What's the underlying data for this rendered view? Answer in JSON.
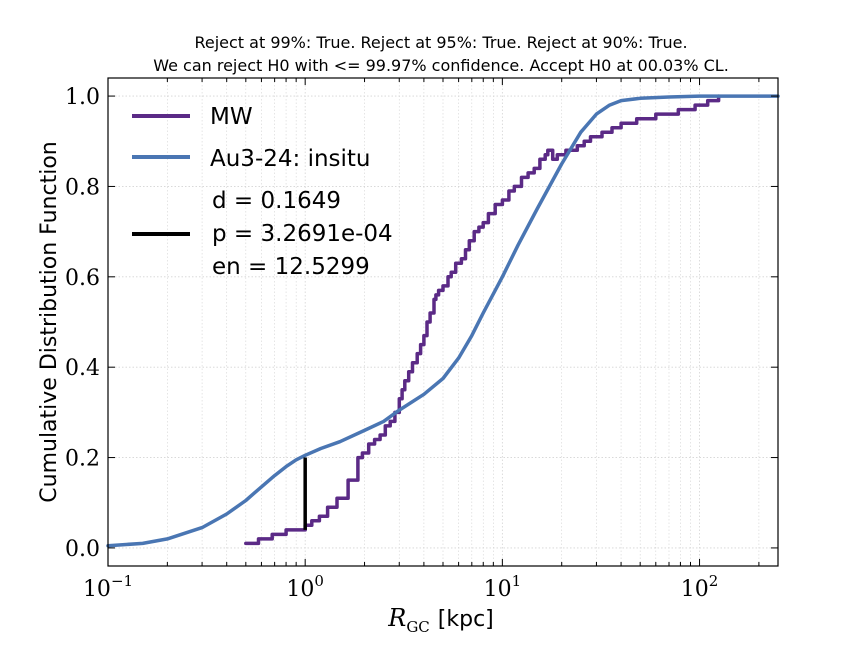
{
  "chart_data": {
    "type": "line",
    "title": {
      "line1": "Reject at 99%: True. Reject at 95%: True. Reject at 90%: True.",
      "line2": "We can reject H0 with <= 99.97% confidence. Accept H0 at 00.03% CL."
    },
    "xlabel": {
      "main": "R",
      "sub": "GC",
      "unit": "[kpc]"
    },
    "ylabel": "Cumulative Distribution Function",
    "xscale": "log",
    "xlim": [
      0.1,
      250
    ],
    "ylim": [
      -0.04,
      1.04
    ],
    "x_ticks": [
      {
        "value": 0.1,
        "base": "10",
        "exp": "−1"
      },
      {
        "value": 1,
        "base": "10",
        "exp": "0"
      },
      {
        "value": 10,
        "base": "10",
        "exp": "1"
      },
      {
        "value": 100,
        "base": "10",
        "exp": "2"
      }
    ],
    "y_ticks": [
      {
        "value": 0.0,
        "label": "0.0"
      },
      {
        "value": 0.2,
        "label": "0.2"
      },
      {
        "value": 0.4,
        "label": "0.4"
      },
      {
        "value": 0.6,
        "label": "0.6"
      },
      {
        "value": 0.8,
        "label": "0.8"
      },
      {
        "value": 1.0,
        "label": "1.0"
      }
    ],
    "grid": true,
    "legend_position": "top-left",
    "legend": [
      {
        "name": "MW",
        "color": "#5b2a86"
      },
      {
        "name": "Au3-24: insitu",
        "color": "#4a76b3"
      },
      {
        "name": "d = 0.1649\np = 3.2691e-04\nen = 12.5299",
        "color": "#000000"
      }
    ],
    "series": [
      {
        "name": "MW",
        "style": "step",
        "color": "#5b2a86",
        "x": [
          0.5,
          0.58,
          0.68,
          0.8,
          1.0,
          1.08,
          1.18,
          1.3,
          1.45,
          1.65,
          1.85,
          1.95,
          2.1,
          2.25,
          2.4,
          2.55,
          2.7,
          2.85,
          3.0,
          3.1,
          3.2,
          3.35,
          3.5,
          3.7,
          3.85,
          4.0,
          4.15,
          4.3,
          4.5,
          4.6,
          4.75,
          5.0,
          5.3,
          5.5,
          5.8,
          6.2,
          6.5,
          6.8,
          7.2,
          7.6,
          8.0,
          8.5,
          9.2,
          10.0,
          10.8,
          11.5,
          12.5,
          13.5,
          14.5,
          15.5,
          16.5,
          17.0,
          18.0,
          19.0,
          21.0,
          24.0,
          26.0,
          28.0,
          32.0,
          36.0,
          40.0,
          48.0,
          60.0,
          78.0,
          95.0,
          110.0,
          125.0
        ],
        "values": [
          0.01,
          0.02,
          0.03,
          0.04,
          0.05,
          0.06,
          0.07,
          0.09,
          0.11,
          0.15,
          0.2,
          0.21,
          0.23,
          0.24,
          0.25,
          0.27,
          0.28,
          0.3,
          0.33,
          0.35,
          0.37,
          0.39,
          0.41,
          0.43,
          0.45,
          0.47,
          0.5,
          0.52,
          0.55,
          0.56,
          0.57,
          0.58,
          0.6,
          0.61,
          0.63,
          0.64,
          0.66,
          0.68,
          0.7,
          0.71,
          0.72,
          0.74,
          0.76,
          0.77,
          0.79,
          0.8,
          0.82,
          0.83,
          0.84,
          0.86,
          0.87,
          0.88,
          0.86,
          0.87,
          0.88,
          0.89,
          0.9,
          0.91,
          0.92,
          0.93,
          0.94,
          0.95,
          0.96,
          0.97,
          0.98,
          0.99,
          1.0
        ]
      },
      {
        "name": "Au3-24: insitu",
        "style": "line",
        "color": "#4a76b3",
        "x": [
          0.1,
          0.15,
          0.2,
          0.3,
          0.4,
          0.5,
          0.6,
          0.7,
          0.8,
          0.9,
          1.0,
          1.2,
          1.5,
          2.0,
          2.5,
          3.0,
          4.0,
          5.0,
          6.0,
          7.0,
          8.0,
          10.0,
          12.0,
          15.0,
          20.0,
          25.0,
          30.0,
          35.0,
          40.0,
          50.0,
          70.0,
          100.0,
          150.0,
          250.0
        ],
        "values": [
          0.005,
          0.01,
          0.02,
          0.045,
          0.075,
          0.105,
          0.135,
          0.16,
          0.18,
          0.195,
          0.205,
          0.22,
          0.235,
          0.26,
          0.28,
          0.305,
          0.34,
          0.375,
          0.42,
          0.47,
          0.52,
          0.6,
          0.67,
          0.75,
          0.85,
          0.92,
          0.96,
          0.98,
          0.99,
          0.995,
          0.998,
          1.0,
          1.0,
          1.0
        ]
      }
    ],
    "ks_segment": {
      "x": 1.0,
      "y_low": 0.04,
      "y_high": 0.2
    }
  }
}
